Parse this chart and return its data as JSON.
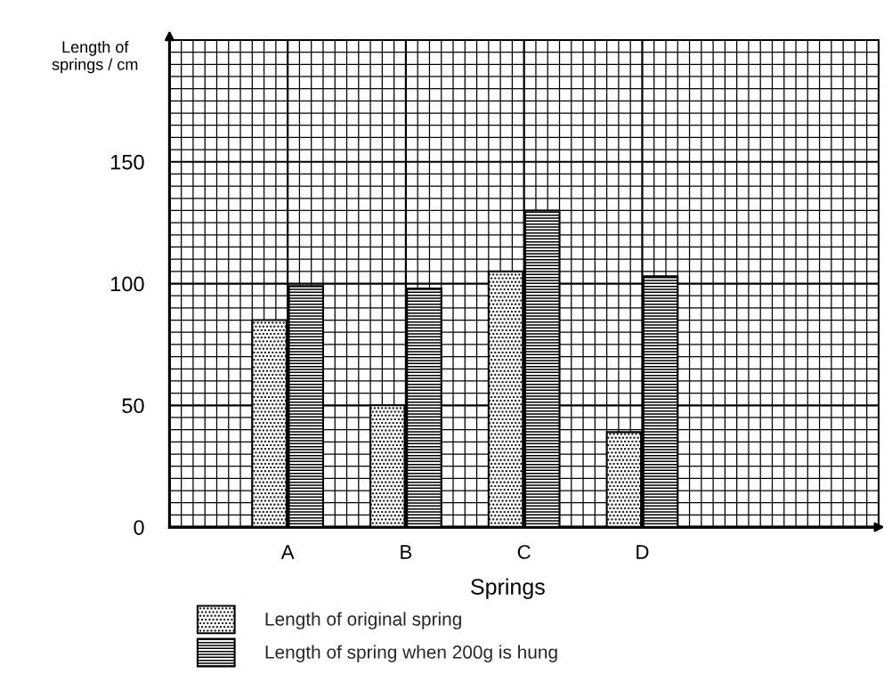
{
  "chart_data": {
    "type": "bar",
    "xlabel": "Springs",
    "ylabel": "Length of\nsprings / cm",
    "categories": [
      "A",
      "B",
      "C",
      "D"
    ],
    "series": [
      {
        "name": "Length of original spring",
        "color": "#000000",
        "values": [
          85,
          50,
          105,
          39
        ]
      },
      {
        "name": "Length of spring when 200g is hung",
        "color": "#000000",
        "values": [
          99,
          98,
          130,
          103
        ]
      }
    ],
    "ylim": [
      0,
      200
    ],
    "yticks": [
      0,
      50,
      100,
      150
    ],
    "grid": true,
    "legend": "bottom"
  }
}
